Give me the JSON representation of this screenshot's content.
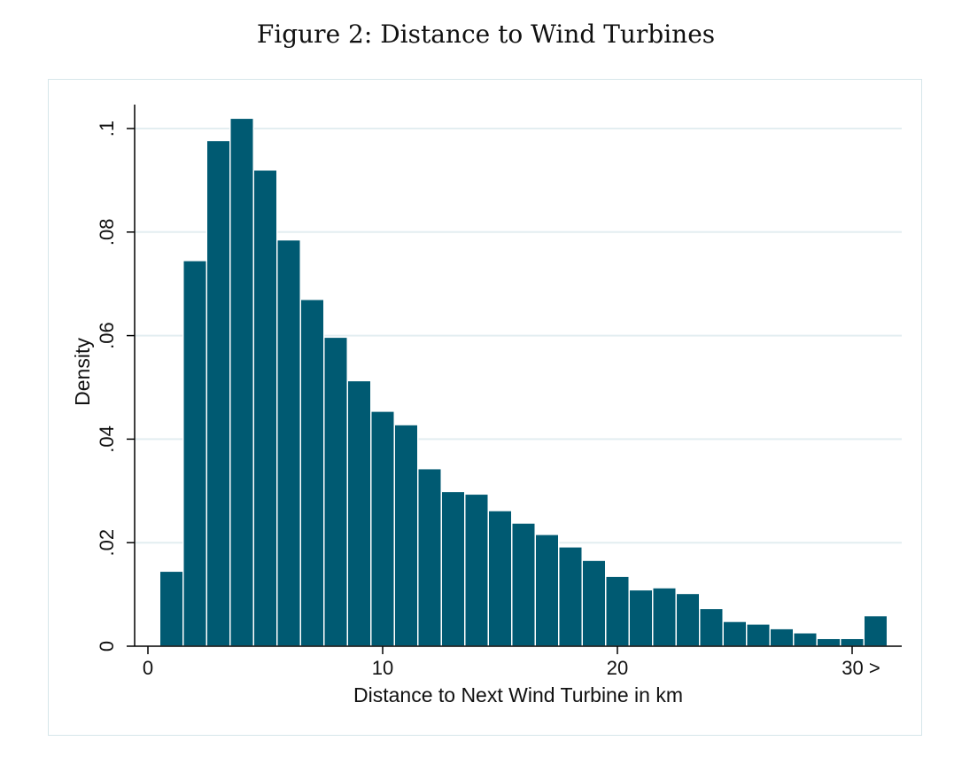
{
  "figure": {
    "title": "Figure 2: Distance to Wind Turbines"
  },
  "colors": {
    "bar": "#005a72",
    "bar_edge": "#ffffff",
    "grid": "#e3eef1",
    "axis": "#000000"
  },
  "chart_data": {
    "type": "bar",
    "title": "",
    "xlabel": "Distance to Next Wind Turbine in km",
    "ylabel": "Density",
    "xlim": [
      0,
      32
    ],
    "ylim": [
      0,
      0.1
    ],
    "grid": true,
    "bin_width": 1,
    "x_ticks": [
      {
        "value": 0,
        "label": "0"
      },
      {
        "value": 10,
        "label": "10"
      },
      {
        "value": 20,
        "label": "20"
      },
      {
        "value": 30,
        "label": "30 >"
      }
    ],
    "y_ticks": [
      {
        "value": 0,
        "label": "0"
      },
      {
        "value": 0.02,
        "label": ".02"
      },
      {
        "value": 0.04,
        "label": ".04"
      },
      {
        "value": 0.06,
        "label": ".06"
      },
      {
        "value": 0.08,
        "label": ".08"
      },
      {
        "value": 0.1,
        "label": ".1"
      }
    ],
    "bins": [
      {
        "x0": 0.5,
        "value": 0.0145
      },
      {
        "x0": 1.5,
        "value": 0.0745
      },
      {
        "x0": 2.5,
        "value": 0.0977
      },
      {
        "x0": 3.5,
        "value": 0.102
      },
      {
        "x0": 4.5,
        "value": 0.092
      },
      {
        "x0": 5.5,
        "value": 0.0785
      },
      {
        "x0": 6.5,
        "value": 0.067
      },
      {
        "x0": 7.5,
        "value": 0.0597
      },
      {
        "x0": 8.5,
        "value": 0.0513
      },
      {
        "x0": 9.5,
        "value": 0.0454
      },
      {
        "x0": 10.5,
        "value": 0.0428
      },
      {
        "x0": 11.5,
        "value": 0.0343
      },
      {
        "x0": 12.5,
        "value": 0.0299
      },
      {
        "x0": 13.5,
        "value": 0.0294
      },
      {
        "x0": 14.5,
        "value": 0.0262
      },
      {
        "x0": 15.5,
        "value": 0.0238
      },
      {
        "x0": 16.5,
        "value": 0.0216
      },
      {
        "x0": 17.5,
        "value": 0.0192
      },
      {
        "x0": 18.5,
        "value": 0.0166
      },
      {
        "x0": 19.5,
        "value": 0.0135
      },
      {
        "x0": 20.5,
        "value": 0.0109
      },
      {
        "x0": 21.5,
        "value": 0.0113
      },
      {
        "x0": 22.5,
        "value": 0.0102
      },
      {
        "x0": 23.5,
        "value": 0.0073
      },
      {
        "x0": 24.5,
        "value": 0.0048
      },
      {
        "x0": 25.5,
        "value": 0.0043
      },
      {
        "x0": 26.5,
        "value": 0.0034
      },
      {
        "x0": 27.5,
        "value": 0.0026
      },
      {
        "x0": 28.5,
        "value": 0.0015
      },
      {
        "x0": 29.5,
        "value": 0.0015
      },
      {
        "x0": 30.5,
        "value": 0.0059
      }
    ]
  }
}
